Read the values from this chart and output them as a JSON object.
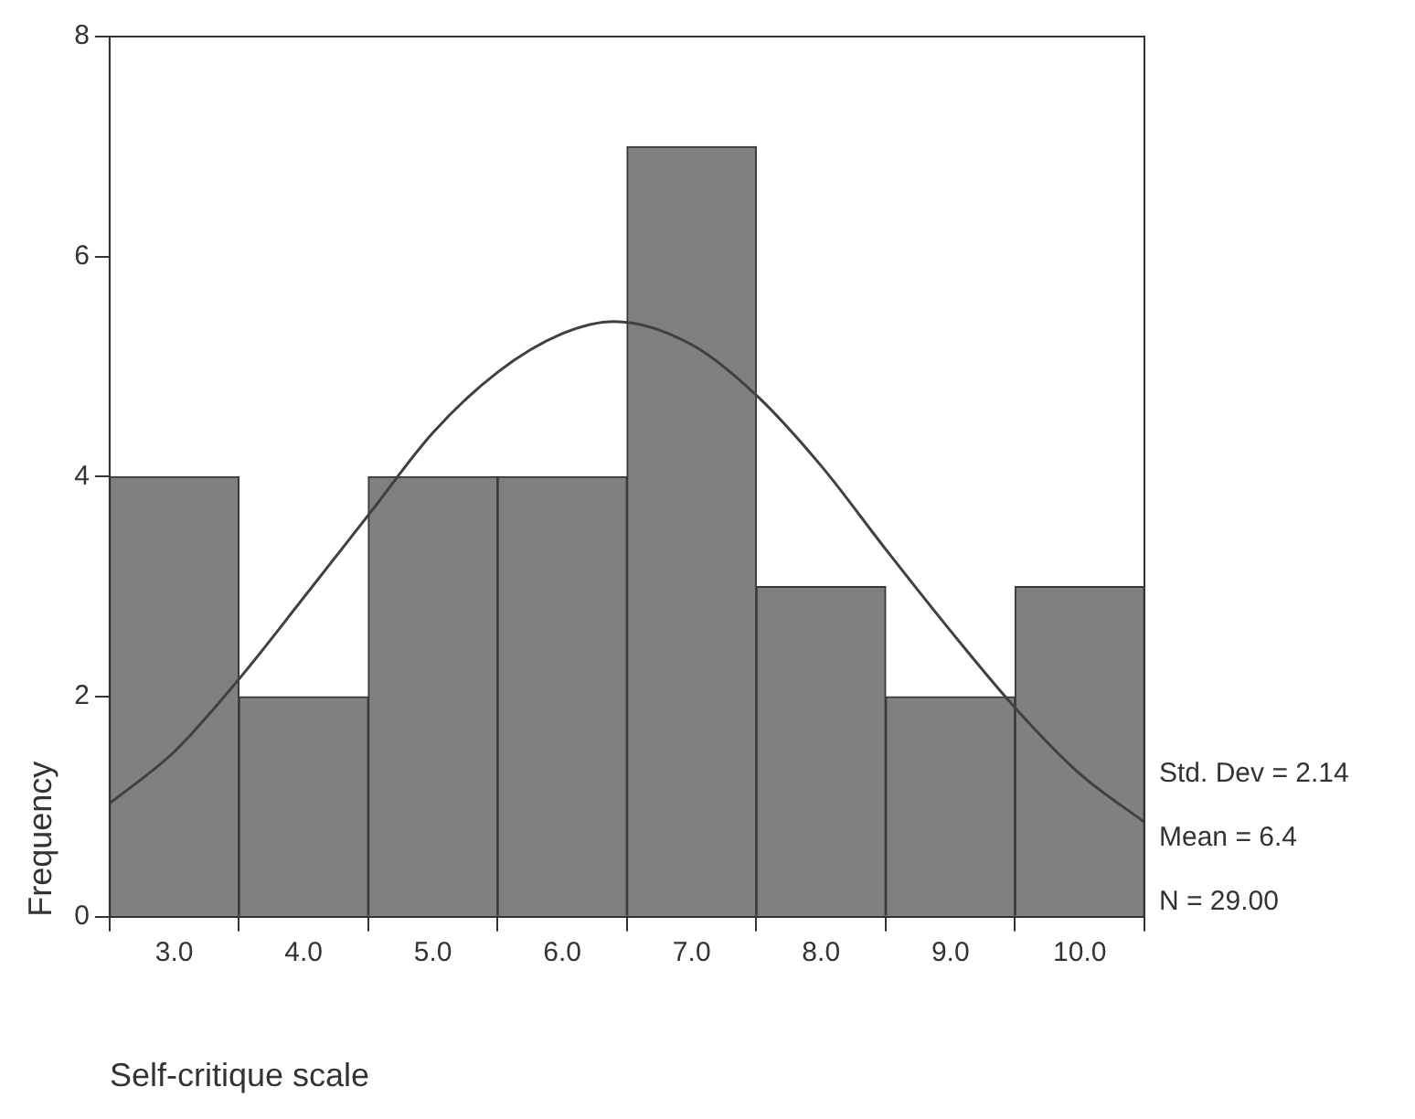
{
  "chart_data": {
    "type": "histogram",
    "xlabel": "Self-critique scale",
    "ylabel": "Frequency",
    "bins": [
      2.5,
      3.5,
      4.5,
      5.5,
      6.5,
      7.5,
      8.5,
      9.5,
      10.5
    ],
    "values": [
      4,
      2,
      4,
      4,
      7,
      3,
      2,
      3
    ],
    "color": "#808080",
    "series": [
      {
        "type": "line",
        "color": "#404040",
        "x": [
          2.5,
          3,
          3.5,
          4,
          4.5,
          5,
          5.5,
          6,
          6.4,
          7,
          7.5,
          8,
          8.5,
          9,
          9.5,
          10,
          10.5
        ],
        "values": [
          1.03,
          1.5,
          2.16,
          2.9,
          3.65,
          4.4,
          4.95,
          5.3,
          5.41,
          5.2,
          4.74,
          4.1,
          3.34,
          2.6,
          1.9,
          1.3,
          0.86
        ]
      }
    ],
    "xlim": [
      2.5,
      10.5
    ],
    "xticks": [
      {
        "value": 3,
        "label": "3.0"
      },
      {
        "value": 4,
        "label": "4.0"
      },
      {
        "value": 5,
        "label": "5.0"
      },
      {
        "value": 6,
        "label": "6.0"
      },
      {
        "value": 7,
        "label": "7.0"
      },
      {
        "value": 8,
        "label": "8.0"
      },
      {
        "value": 9,
        "label": "9.0"
      },
      {
        "value": 10,
        "label": "10.0"
      }
    ],
    "ylim": [
      0,
      8
    ],
    "yticks": [
      0,
      2,
      4,
      6,
      8
    ],
    "annotations": [
      "Std. Dev = 2.14",
      "Mean = 6.4",
      "N = 29.00"
    ]
  }
}
